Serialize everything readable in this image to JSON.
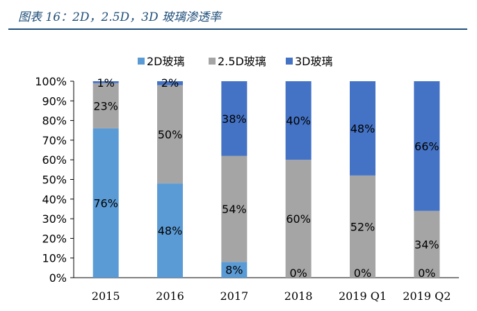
{
  "title": "图表 16：2D，2.5D，3D 玻璃渗透率",
  "colors": {
    "title": "#1f4e79",
    "s2d": "#5b9bd5",
    "s25d": "#a5a5a5",
    "s3d": "#4472c4"
  },
  "chart_data": {
    "type": "bar",
    "stacked": true,
    "categories": [
      "2015",
      "2016",
      "2017",
      "2018",
      "2019 Q1",
      "2019 Q2"
    ],
    "series": [
      {
        "name": "2D玻璃",
        "values": [
          76,
          48,
          8,
          0,
          0,
          0
        ],
        "labels": [
          "76%",
          "48%",
          "8%",
          "0%",
          "0%",
          "0%"
        ]
      },
      {
        "name": "2.5D玻璃",
        "values": [
          23,
          50,
          54,
          60,
          52,
          34
        ],
        "labels": [
          "23%",
          "50%",
          "54%",
          "60%",
          "52%",
          "34%"
        ]
      },
      {
        "name": "3D玻璃",
        "values": [
          1,
          2,
          38,
          40,
          48,
          66
        ],
        "labels": [
          "1%",
          "2%",
          "38%",
          "40%",
          "48%",
          "66%"
        ]
      }
    ],
    "ylim": [
      0,
      100
    ],
    "yticks": [
      "0%",
      "10%",
      "20%",
      "30%",
      "40%",
      "50%",
      "60%",
      "70%",
      "80%",
      "90%",
      "100%"
    ],
    "legend_position": "top",
    "grid": false
  }
}
